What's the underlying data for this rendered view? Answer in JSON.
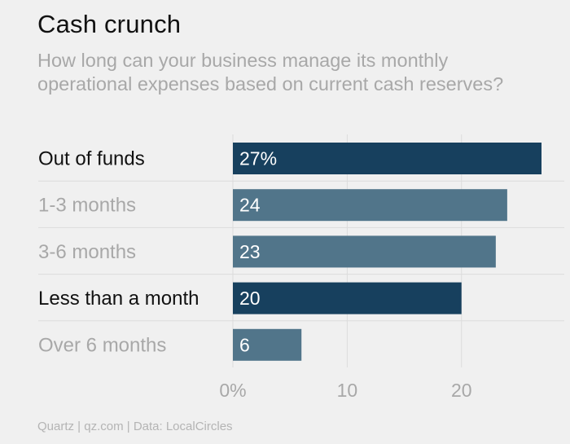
{
  "title": "Cash crunch",
  "subtitle": "How long can your business manage its monthly operational expenses based on current cash reserves?",
  "source": "Quartz | qz.com | Data: LocalCircles",
  "chart_data": {
    "type": "bar",
    "orientation": "horizontal",
    "categories": [
      "Out of funds",
      "1-3 months",
      "3-6 months",
      "Less than a month",
      "Over 6 months"
    ],
    "values": [
      27,
      24,
      23,
      20,
      6
    ],
    "value_labels": [
      "27%",
      "24",
      "23",
      "20",
      "6"
    ],
    "highlighted": [
      true,
      false,
      false,
      true,
      false
    ],
    "xlim": [
      0,
      27
    ],
    "xticks": [
      0,
      10,
      20
    ],
    "xtick_labels": [
      "0%",
      "10",
      "20"
    ],
    "colors": {
      "highlight_bar": "#17405e",
      "normal_bar": "#51758a",
      "highlight_label": "#111111",
      "normal_label": "#a8a8a8",
      "grid": "#dcdcdc"
    },
    "grid": true
  }
}
